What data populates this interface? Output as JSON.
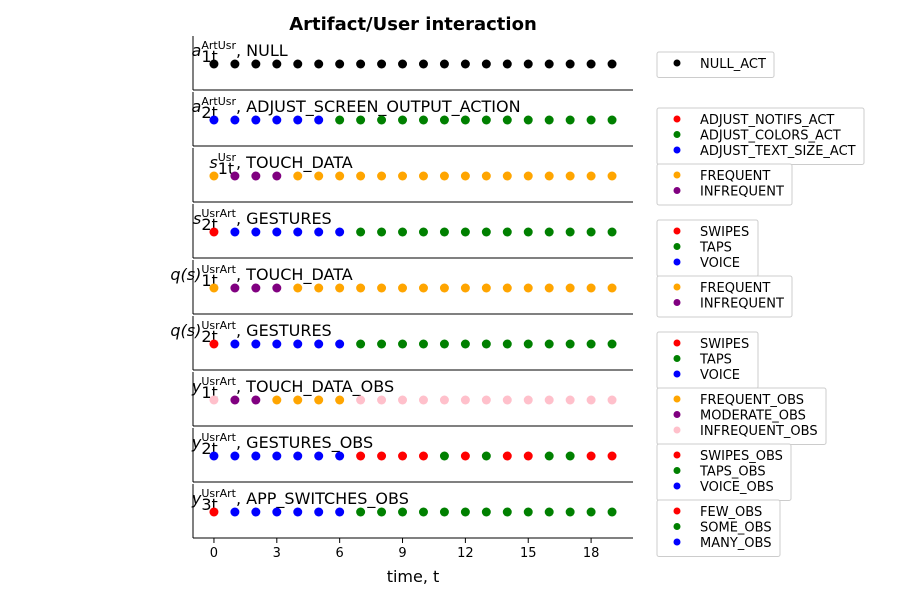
{
  "chart_data": {
    "type": "scatter",
    "title": "Artifact/User interaction",
    "xlabel": "time,  t",
    "xlim": [
      -1,
      20
    ],
    "xticks": [
      0,
      3,
      6,
      9,
      12,
      15,
      18
    ],
    "x": [
      0,
      1,
      2,
      3,
      4,
      5,
      6,
      7,
      8,
      9,
      10,
      11,
      12,
      13,
      14,
      15,
      16,
      17,
      18,
      19
    ],
    "panels": [
      {
        "label": {
          "base": "a",
          "sub": "1t",
          "sup": "ArtUsr",
          "text": "NULL"
        },
        "legend": [
          {
            "name": "NULL_ACT",
            "color": "#000000"
          }
        ],
        "point_states": [
          0,
          0,
          0,
          0,
          0,
          0,
          0,
          0,
          0,
          0,
          0,
          0,
          0,
          0,
          0,
          0,
          0,
          0,
          0,
          0
        ]
      },
      {
        "label": {
          "base": "a",
          "sub": "2t",
          "sup": "ArtUsr",
          "text": "ADJUST_SCREEN_OUTPUT_ACTION"
        },
        "legend": [
          {
            "name": "ADJUST_NOTIFS_ACT",
            "color": "#ff0000"
          },
          {
            "name": "ADJUST_COLORS_ACT",
            "color": "#008000"
          },
          {
            "name": "ADJUST_TEXT_SIZE_ACT",
            "color": "#0000ff"
          }
        ],
        "point_states": [
          2,
          2,
          2,
          2,
          2,
          2,
          1,
          1,
          1,
          1,
          1,
          1,
          1,
          1,
          1,
          1,
          1,
          1,
          1,
          1
        ]
      },
      {
        "label": {
          "base": "s",
          "sub": "1t",
          "sup": "Usr",
          "text": "TOUCH_DATA"
        },
        "legend": [
          {
            "name": "FREQUENT",
            "color": "#ffa500"
          },
          {
            "name": "INFREQUENT",
            "color": "#800080"
          }
        ],
        "point_states": [
          0,
          1,
          1,
          1,
          0,
          0,
          0,
          0,
          0,
          0,
          0,
          0,
          0,
          0,
          0,
          0,
          0,
          0,
          0,
          0
        ]
      },
      {
        "label": {
          "base": "s",
          "sub": "2t",
          "sup": "UsrArt",
          "text": "GESTURES"
        },
        "legend": [
          {
            "name": "SWIPES",
            "color": "#ff0000"
          },
          {
            "name": "TAPS",
            "color": "#008000"
          },
          {
            "name": "VOICE",
            "color": "#0000ff"
          }
        ],
        "point_states": [
          0,
          2,
          2,
          2,
          2,
          2,
          2,
          1,
          1,
          1,
          1,
          1,
          1,
          1,
          1,
          1,
          1,
          1,
          1,
          1
        ]
      },
      {
        "label": {
          "base": "q(s)",
          "sub": "1t",
          "sup": "UsrArt",
          "text": "TOUCH_DATA"
        },
        "legend": [
          {
            "name": "FREQUENT",
            "color": "#ffa500"
          },
          {
            "name": "INFREQUENT",
            "color": "#800080"
          }
        ],
        "point_states": [
          0,
          1,
          1,
          1,
          0,
          0,
          0,
          0,
          0,
          0,
          0,
          0,
          0,
          0,
          0,
          0,
          0,
          0,
          0,
          0
        ]
      },
      {
        "label": {
          "base": "q(s)",
          "sub": "2t",
          "sup": "UsrArt",
          "text": "GESTURES"
        },
        "legend": [
          {
            "name": "SWIPES",
            "color": "#ff0000"
          },
          {
            "name": "TAPS",
            "color": "#008000"
          },
          {
            "name": "VOICE",
            "color": "#0000ff"
          }
        ],
        "point_states": [
          0,
          2,
          2,
          2,
          2,
          2,
          2,
          1,
          1,
          1,
          1,
          1,
          1,
          1,
          1,
          1,
          1,
          1,
          1,
          1
        ]
      },
      {
        "label": {
          "base": "y",
          "sub": "1t",
          "sup": "UsrArt",
          "text": "TOUCH_DATA_OBS"
        },
        "legend": [
          {
            "name": "FREQUENT_OBS",
            "color": "#ffa500"
          },
          {
            "name": "MODERATE_OBS",
            "color": "#800080"
          },
          {
            "name": "INFREQUENT_OBS",
            "color": "#ffc0cb"
          }
        ],
        "point_states": [
          2,
          1,
          1,
          0,
          0,
          0,
          0,
          2,
          2,
          2,
          2,
          2,
          2,
          2,
          2,
          2,
          2,
          2,
          2,
          2
        ]
      },
      {
        "label": {
          "base": "y",
          "sub": "2t",
          "sup": "UsrArt",
          "text": "GESTURES_OBS"
        },
        "legend": [
          {
            "name": "SWIPES_OBS",
            "color": "#ff0000"
          },
          {
            "name": "TAPS_OBS",
            "color": "#008000"
          },
          {
            "name": "VOICE_OBS",
            "color": "#0000ff"
          }
        ],
        "point_states": [
          2,
          2,
          2,
          2,
          2,
          2,
          2,
          0,
          0,
          0,
          0,
          1,
          0,
          1,
          0,
          0,
          1,
          1,
          0,
          0
        ]
      },
      {
        "label": {
          "base": "y",
          "sub": "3t",
          "sup": "UsrArt",
          "text": "APP_SWITCHES_OBS"
        },
        "legend": [
          {
            "name": "FEW_OBS",
            "color": "#ff0000"
          },
          {
            "name": "SOME_OBS",
            "color": "#008000"
          },
          {
            "name": "MANY_OBS",
            "color": "#0000ff"
          }
        ],
        "point_states": [
          0,
          2,
          2,
          2,
          2,
          2,
          2,
          1,
          1,
          1,
          1,
          1,
          1,
          1,
          1,
          1,
          1,
          1,
          1,
          1
        ]
      }
    ]
  }
}
